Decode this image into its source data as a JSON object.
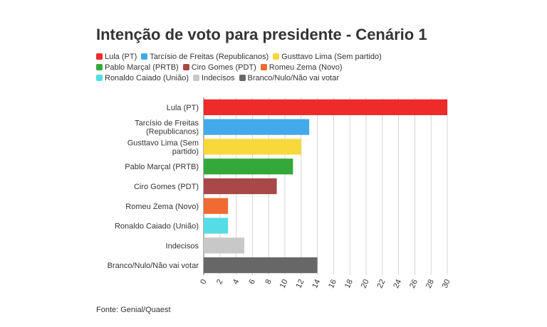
{
  "title": "Intenção de voto para presidente - Cenário 1",
  "source": "Fonte: Genial/Quaest",
  "legend": [
    [
      {
        "label": "Lula (PT)",
        "color": "#ee2a2a"
      },
      {
        "label": "Tarcísio de Freitas (Republicanos)",
        "color": "#42a9ea"
      },
      {
        "label": "Gusttavo Lima (Sem partido)",
        "color": "#f8d83a"
      }
    ],
    [
      {
        "label": "Pablo Marçal (PRTB)",
        "color": "#35a83a"
      },
      {
        "label": "Ciro Gomes (PDT)",
        "color": "#a84848"
      },
      {
        "label": "Romeu Zema (Novo)",
        "color": "#f06a32"
      }
    ],
    [
      {
        "label": "Ronaldo Caiado (União)",
        "color": "#55dce4"
      },
      {
        "label": "Indecisos",
        "color": "#c8c8c8"
      },
      {
        "label": "Branco/Nulo/Não vai votar",
        "color": "#676767"
      }
    ]
  ],
  "chart_data": {
    "type": "bar",
    "orientation": "horizontal",
    "categories": [
      [
        "Lula (PT)"
      ],
      [
        "Tarcísio de Freitas",
        "(Republicanos)"
      ],
      [
        "Gusttavo Lima (Sem",
        "partido)"
      ],
      [
        "Pablo Marçal (PRTB)"
      ],
      [
        "Ciro Gomes (PDT)"
      ],
      [
        "Romeu Zema (Novo)"
      ],
      [
        "Ronaldo Caiado (União)"
      ],
      [
        "Indecisos"
      ],
      [
        "Branco/Nulo/Não vai votar"
      ]
    ],
    "values": [
      30,
      13,
      12,
      11,
      9,
      3,
      3,
      5,
      14
    ],
    "colors": [
      "#ee2a2a",
      "#42a9ea",
      "#f8d83a",
      "#35a83a",
      "#a84848",
      "#f06a32",
      "#55dce4",
      "#c8c8c8",
      "#676767"
    ],
    "xlim": [
      0,
      30
    ],
    "xticks": [
      0,
      2,
      4,
      6,
      8,
      10,
      12,
      14,
      16,
      18,
      20,
      22,
      24,
      26,
      28,
      30
    ],
    "grid": true,
    "legend_position": "top"
  }
}
